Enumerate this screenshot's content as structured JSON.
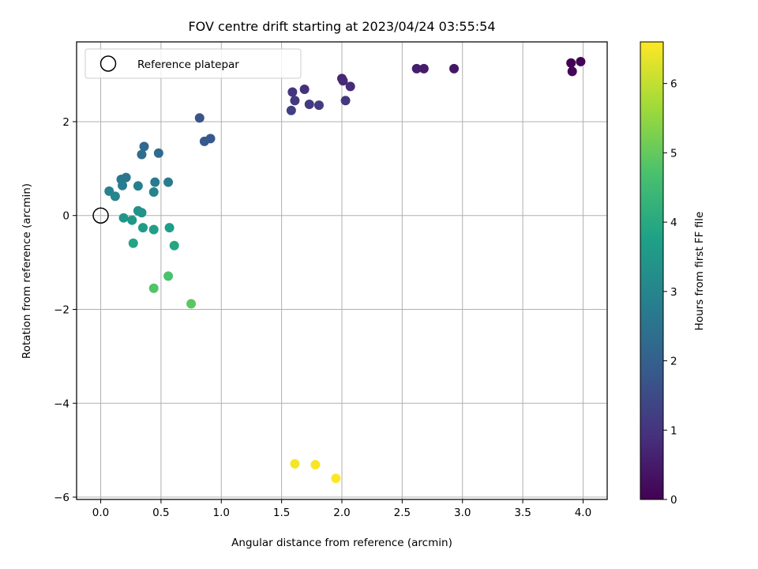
{
  "chart_data": {
    "type": "scatter",
    "title": "FOV centre drift starting at 2023/04/24 03:55:54",
    "xlabel": "Angular distance from reference (arcmin)",
    "ylabel": "Rotation from reference (arcmin)",
    "xlim": [
      -0.2,
      4.2
    ],
    "ylim": [
      -6.05,
      3.7
    ],
    "xticks": [
      0.0,
      0.5,
      1.0,
      1.5,
      2.0,
      2.5,
      3.0,
      3.5,
      4.0
    ],
    "xtick_labels": [
      "0.0",
      "0.5",
      "1.0",
      "1.5",
      "2.0",
      "2.5",
      "3.0",
      "3.5",
      "4.0"
    ],
    "yticks": [
      -6,
      -4,
      -2,
      0,
      2
    ],
    "ytick_labels": [
      "−6",
      "−4",
      "−2",
      "0",
      "2"
    ],
    "grid": true,
    "legend": {
      "placement": "top-left",
      "entries": [
        "Reference platepar"
      ]
    },
    "reference_point": {
      "x": 0.0,
      "y": 0.0
    },
    "colorbar": {
      "label": "Hours from first FF file",
      "colormap": "viridis",
      "range": [
        0,
        6.6
      ],
      "ticks": [
        0,
        1,
        2,
        3,
        4,
        5,
        6
      ],
      "tick_labels": [
        "0",
        "1",
        "2",
        "3",
        "4",
        "5",
        "6"
      ]
    },
    "points": [
      {
        "x": 3.9,
        "y": 3.25,
        "c": 0.0
      },
      {
        "x": 3.98,
        "y": 3.28,
        "c": 0.05
      },
      {
        "x": 3.91,
        "y": 3.07,
        "c": 0.1
      },
      {
        "x": 2.93,
        "y": 3.13,
        "c": 0.4
      },
      {
        "x": 2.68,
        "y": 3.13,
        "c": 0.5
      },
      {
        "x": 2.62,
        "y": 3.13,
        "c": 0.55
      },
      {
        "x": 2.0,
        "y": 2.92,
        "c": 0.7
      },
      {
        "x": 2.01,
        "y": 2.87,
        "c": 0.75
      },
      {
        "x": 2.07,
        "y": 2.75,
        "c": 0.8
      },
      {
        "x": 1.69,
        "y": 2.69,
        "c": 0.9
      },
      {
        "x": 1.59,
        "y": 2.63,
        "c": 1.0
      },
      {
        "x": 2.03,
        "y": 2.45,
        "c": 1.05
      },
      {
        "x": 1.61,
        "y": 2.45,
        "c": 1.1
      },
      {
        "x": 1.73,
        "y": 2.37,
        "c": 1.15
      },
      {
        "x": 1.81,
        "y": 2.35,
        "c": 1.2
      },
      {
        "x": 1.58,
        "y": 2.24,
        "c": 1.25
      },
      {
        "x": 0.82,
        "y": 2.08,
        "c": 1.7
      },
      {
        "x": 0.91,
        "y": 1.64,
        "c": 1.8
      },
      {
        "x": 0.86,
        "y": 1.58,
        "c": 1.85
      },
      {
        "x": 0.36,
        "y": 1.47,
        "c": 2.2
      },
      {
        "x": 0.48,
        "y": 1.33,
        "c": 2.3
      },
      {
        "x": 0.34,
        "y": 1.3,
        "c": 2.35
      },
      {
        "x": 0.21,
        "y": 0.81,
        "c": 2.6
      },
      {
        "x": 0.17,
        "y": 0.77,
        "c": 2.65
      },
      {
        "x": 0.45,
        "y": 0.71,
        "c": 2.7
      },
      {
        "x": 0.56,
        "y": 0.71,
        "c": 2.75
      },
      {
        "x": 0.18,
        "y": 0.64,
        "c": 2.8
      },
      {
        "x": 0.31,
        "y": 0.63,
        "c": 2.85
      },
      {
        "x": 0.07,
        "y": 0.52,
        "c": 2.9
      },
      {
        "x": 0.44,
        "y": 0.5,
        "c": 2.95
      },
      {
        "x": 0.12,
        "y": 0.41,
        "c": 3.0
      },
      {
        "x": 0.31,
        "y": 0.1,
        "c": 3.3
      },
      {
        "x": 0.34,
        "y": 0.06,
        "c": 3.35
      },
      {
        "x": 0.19,
        "y": -0.05,
        "c": 3.45
      },
      {
        "x": 0.26,
        "y": -0.1,
        "c": 3.5
      },
      {
        "x": 0.35,
        "y": -0.26,
        "c": 3.6
      },
      {
        "x": 0.57,
        "y": -0.26,
        "c": 3.65
      },
      {
        "x": 0.44,
        "y": -0.3,
        "c": 3.7
      },
      {
        "x": 0.27,
        "y": -0.59,
        "c": 3.85
      },
      {
        "x": 0.61,
        "y": -0.64,
        "c": 3.9
      },
      {
        "x": 0.56,
        "y": -1.29,
        "c": 4.7
      },
      {
        "x": 0.44,
        "y": -1.55,
        "c": 4.8
      },
      {
        "x": 0.75,
        "y": -1.88,
        "c": 4.9
      },
      {
        "x": 1.61,
        "y": -5.29,
        "c": 6.5
      },
      {
        "x": 1.78,
        "y": -5.31,
        "c": 6.55
      },
      {
        "x": 1.95,
        "y": -5.6,
        "c": 6.6
      }
    ]
  }
}
